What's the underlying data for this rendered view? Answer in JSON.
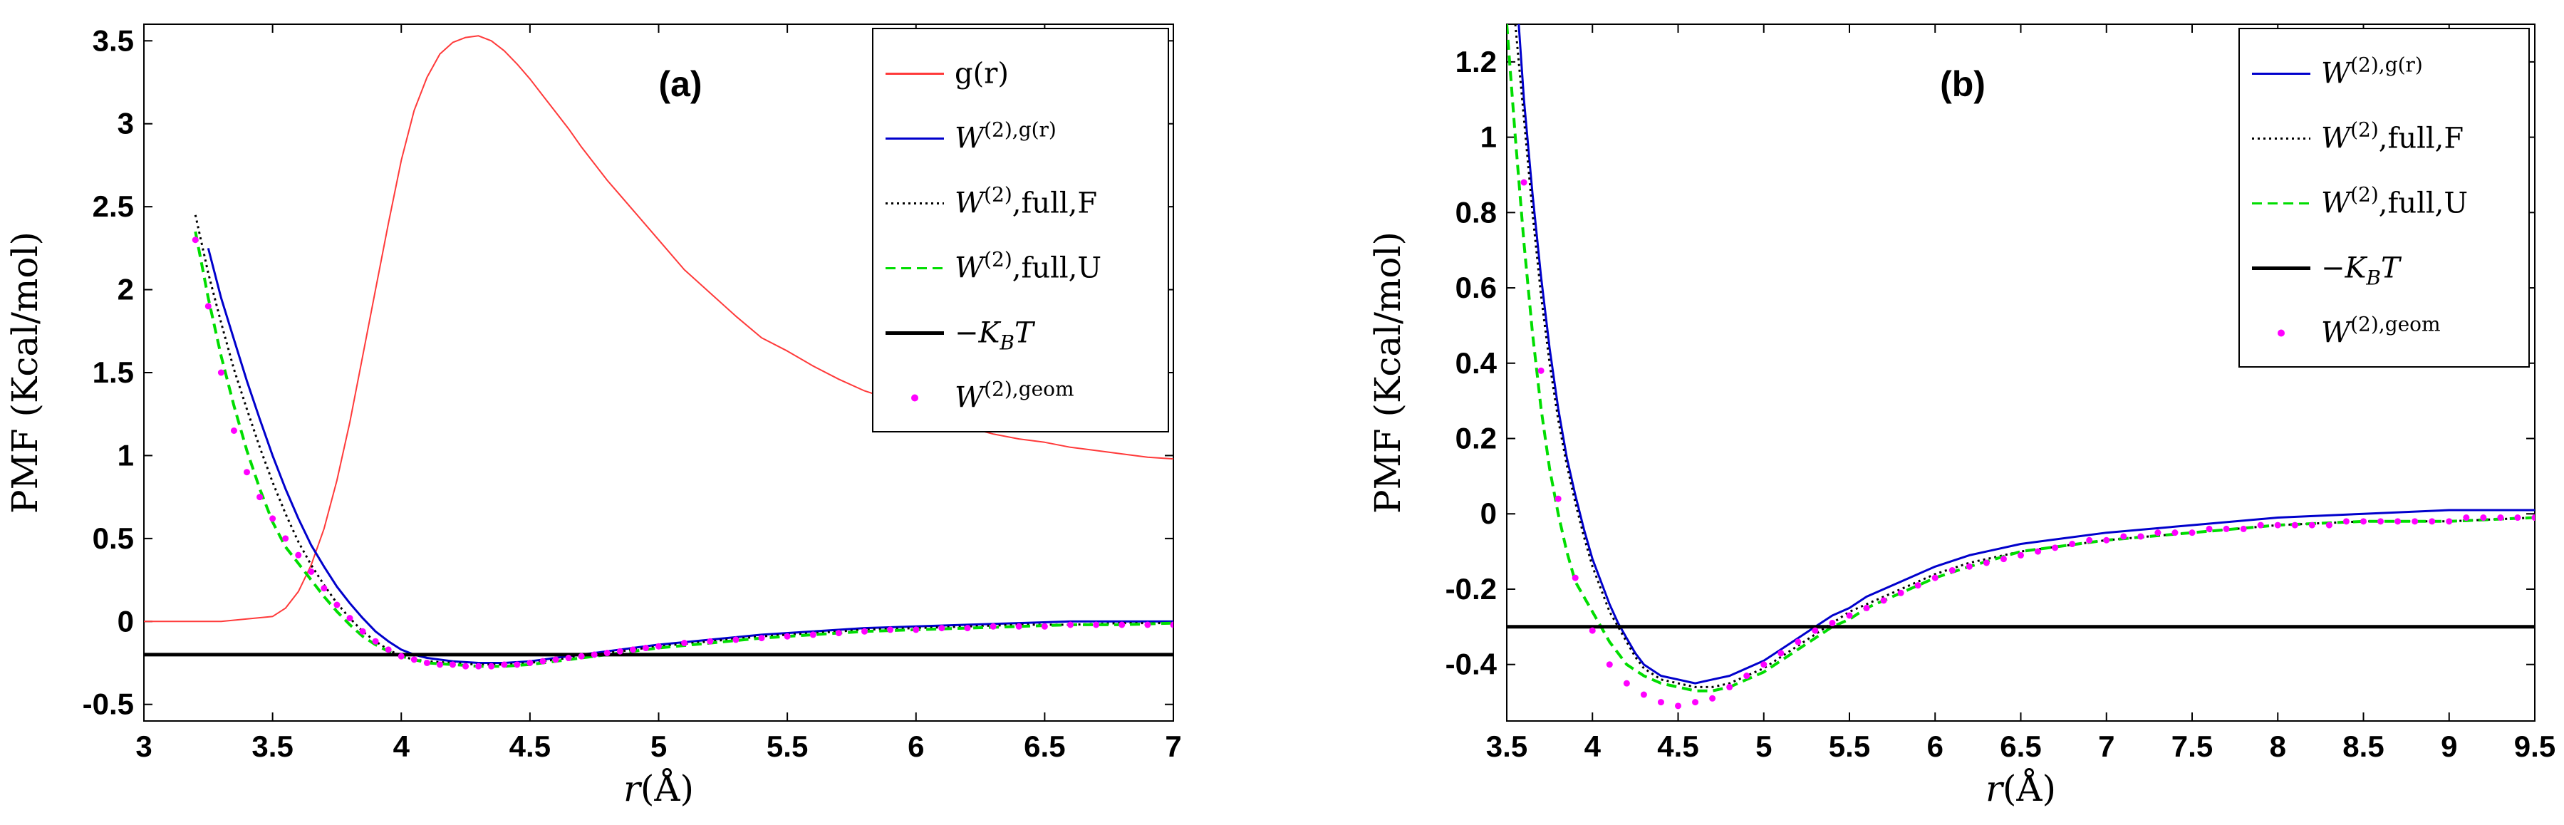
{
  "chart_data": [
    {
      "type": "line",
      "panel_label": "(a)",
      "xlabel": "r(Å)",
      "ylabel": "PMF (Kcal/mol)",
      "xlim": [
        3,
        7
      ],
      "ylim": [
        -0.6,
        3.6
      ],
      "xticks": [
        "3",
        "3.5",
        "4",
        "4.5",
        "5",
        "5.5",
        "6",
        "6.5",
        "7"
      ],
      "yticks": [
        "-0.5",
        "0",
        "0.5",
        "1",
        "1.5",
        "2",
        "2.5",
        "3",
        "3.5"
      ],
      "legend_position": "top-right",
      "legend": [
        "g(r)",
        "W(2),g(r)",
        "W(2),full,F",
        "W(2),full,U",
        "−KBT",
        "W(2),geom"
      ],
      "series": [
        {
          "name": "g(r)",
          "color": "#ff3a3a",
          "style": "solid",
          "x": [
            3.0,
            3.3,
            3.5,
            3.55,
            3.6,
            3.65,
            3.7,
            3.75,
            3.8,
            3.85,
            3.9,
            3.95,
            4.0,
            4.05,
            4.1,
            4.15,
            4.2,
            4.25,
            4.3,
            4.35,
            4.4,
            4.45,
            4.5,
            4.55,
            4.6,
            4.65,
            4.7,
            4.75,
            4.8,
            4.85,
            4.9,
            5.0,
            5.1,
            5.2,
            5.3,
            5.4,
            5.5,
            5.6,
            5.7,
            5.8,
            5.9,
            6.0,
            6.1,
            6.2,
            6.3,
            6.4,
            6.5,
            6.6,
            6.7,
            6.8,
            6.9,
            7.0
          ],
          "y": [
            0.0,
            0.0,
            0.03,
            0.08,
            0.18,
            0.34,
            0.56,
            0.85,
            1.2,
            1.6,
            2.0,
            2.4,
            2.78,
            3.08,
            3.28,
            3.42,
            3.49,
            3.52,
            3.53,
            3.5,
            3.44,
            3.36,
            3.27,
            3.17,
            3.07,
            2.97,
            2.86,
            2.76,
            2.66,
            2.57,
            2.48,
            2.3,
            2.12,
            1.98,
            1.84,
            1.71,
            1.63,
            1.54,
            1.46,
            1.39,
            1.34,
            1.27,
            1.22,
            1.17,
            1.13,
            1.1,
            1.08,
            1.05,
            1.03,
            1.01,
            0.99,
            0.98
          ]
        },
        {
          "name": "W(2),g(r)",
          "color": "#0000cc",
          "style": "solid",
          "x": [
            3.25,
            3.3,
            3.35,
            3.4,
            3.45,
            3.5,
            3.55,
            3.6,
            3.65,
            3.7,
            3.75,
            3.8,
            3.85,
            3.9,
            3.95,
            4.0,
            4.05,
            4.1,
            4.2,
            4.3,
            4.4,
            4.5,
            4.6,
            4.7,
            4.8,
            4.9,
            5.0,
            5.2,
            5.4,
            5.6,
            5.8,
            6.0,
            6.2,
            6.4,
            6.6,
            6.8,
            7.0
          ],
          "y": [
            2.25,
            1.95,
            1.7,
            1.45,
            1.22,
            1.0,
            0.8,
            0.62,
            0.46,
            0.33,
            0.21,
            0.11,
            0.02,
            -0.06,
            -0.12,
            -0.17,
            -0.2,
            -0.22,
            -0.24,
            -0.25,
            -0.25,
            -0.24,
            -0.22,
            -0.2,
            -0.18,
            -0.16,
            -0.14,
            -0.11,
            -0.08,
            -0.06,
            -0.04,
            -0.03,
            -0.02,
            -0.01,
            0.0,
            0.0,
            0.0
          ]
        },
        {
          "name": "W(2),full,F",
          "color": "#000000",
          "style": "dotted",
          "x": [
            3.2,
            3.25,
            3.3,
            3.35,
            3.4,
            3.45,
            3.5,
            3.55,
            3.6,
            3.65,
            3.7,
            3.75,
            3.8,
            3.85,
            3.9,
            3.95,
            4.0,
            4.05,
            4.1,
            4.2,
            4.3,
            4.4,
            4.5,
            4.6,
            4.7,
            4.8,
            4.9,
            5.0,
            5.2,
            5.4,
            5.6,
            5.8,
            6.0,
            6.2,
            6.4,
            6.6,
            6.8,
            7.0
          ],
          "y": [
            2.45,
            2.1,
            1.8,
            1.52,
            1.28,
            1.05,
            0.84,
            0.65,
            0.48,
            0.34,
            0.22,
            0.11,
            0.02,
            -0.06,
            -0.12,
            -0.17,
            -0.21,
            -0.23,
            -0.24,
            -0.25,
            -0.26,
            -0.26,
            -0.25,
            -0.23,
            -0.21,
            -0.19,
            -0.17,
            -0.15,
            -0.12,
            -0.09,
            -0.07,
            -0.05,
            -0.04,
            -0.03,
            -0.02,
            -0.02,
            -0.01,
            -0.01
          ]
        },
        {
          "name": "W(2),full,U",
          "color": "#00dd00",
          "style": "dashed",
          "x": [
            3.2,
            3.25,
            3.3,
            3.35,
            3.4,
            3.45,
            3.5,
            3.55,
            3.6,
            3.65,
            3.7,
            3.75,
            3.8,
            3.85,
            3.9,
            3.95,
            4.0,
            4.05,
            4.1,
            4.2,
            4.3,
            4.4,
            4.5,
            4.6,
            4.7,
            4.8,
            4.9,
            5.0,
            5.2,
            5.4,
            5.6,
            5.8,
            6.0,
            6.2,
            6.4,
            6.6,
            6.8,
            7.0
          ],
          "y": [
            2.35,
            1.95,
            1.6,
            1.3,
            1.03,
            0.8,
            0.6,
            0.45,
            0.35,
            0.25,
            0.15,
            0.06,
            -0.02,
            -0.09,
            -0.14,
            -0.18,
            -0.21,
            -0.23,
            -0.25,
            -0.26,
            -0.27,
            -0.27,
            -0.26,
            -0.24,
            -0.22,
            -0.2,
            -0.18,
            -0.16,
            -0.13,
            -0.1,
            -0.08,
            -0.06,
            -0.05,
            -0.04,
            -0.03,
            -0.02,
            -0.02,
            -0.01
          ]
        },
        {
          "name": "−KBT",
          "color": "#000000",
          "style": "thick",
          "x": [
            3.0,
            7.0
          ],
          "y": [
            -0.2,
            -0.2
          ]
        },
        {
          "name": "W(2),geom",
          "color": "#ff00ff",
          "style": "points",
          "x": [
            3.2,
            3.25,
            3.3,
            3.35,
            3.4,
            3.45,
            3.5,
            3.55,
            3.6,
            3.65,
            3.7,
            3.75,
            3.8,
            3.85,
            3.9,
            3.95,
            4.0,
            4.05,
            4.1,
            4.15,
            4.2,
            4.25,
            4.3,
            4.35,
            4.4,
            4.45,
            4.5,
            4.55,
            4.6,
            4.65,
            4.7,
            4.75,
            4.8,
            4.85,
            4.9,
            4.95,
            5.0,
            5.1,
            5.2,
            5.3,
            5.4,
            5.5,
            5.6,
            5.7,
            5.8,
            5.9,
            6.0,
            6.1,
            6.2,
            6.3,
            6.4,
            6.5,
            6.6,
            6.7,
            6.8,
            6.9,
            7.0
          ],
          "y": [
            2.3,
            1.9,
            1.5,
            1.15,
            0.9,
            0.75,
            0.62,
            0.5,
            0.4,
            0.3,
            0.2,
            0.1,
            0.02,
            -0.06,
            -0.12,
            -0.17,
            -0.21,
            -0.23,
            -0.25,
            -0.26,
            -0.26,
            -0.27,
            -0.27,
            -0.27,
            -0.26,
            -0.26,
            -0.25,
            -0.24,
            -0.23,
            -0.22,
            -0.21,
            -0.2,
            -0.19,
            -0.18,
            -0.17,
            -0.16,
            -0.15,
            -0.13,
            -0.12,
            -0.11,
            -0.1,
            -0.09,
            -0.08,
            -0.07,
            -0.06,
            -0.05,
            -0.05,
            -0.04,
            -0.04,
            -0.03,
            -0.03,
            -0.03,
            -0.02,
            -0.02,
            -0.02,
            -0.02,
            -0.02
          ]
        }
      ]
    },
    {
      "type": "line",
      "panel_label": "(b)",
      "xlabel": "r(Å)",
      "ylabel": "PMF (Kcal/mol)",
      "xlim": [
        3.5,
        9.5
      ],
      "ylim": [
        -0.55,
        1.3
      ],
      "xticks": [
        "3.5",
        "4",
        "4.5",
        "5",
        "5.5",
        "6",
        "6.5",
        "7",
        "7.5",
        "8",
        "8.5",
        "9",
        "9.5"
      ],
      "yticks": [
        "-0.4",
        "-0.2",
        "0",
        "0.2",
        "0.4",
        "0.6",
        "0.8",
        "1",
        "1.2"
      ],
      "legend_position": "top-right",
      "legend": [
        "W(2),g(r)",
        "W(2),full,F",
        "W(2),full,U",
        "−KBT",
        "W(2),geom"
      ],
      "series": [
        {
          "name": "W(2),g(r)",
          "color": "#0000cc",
          "style": "solid",
          "x": [
            3.57,
            3.6,
            3.65,
            3.7,
            3.75,
            3.8,
            3.85,
            3.9,
            3.95,
            4.0,
            4.05,
            4.1,
            4.15,
            4.2,
            4.25,
            4.3,
            4.4,
            4.5,
            4.6,
            4.7,
            4.8,
            4.9,
            5.0,
            5.1,
            5.2,
            5.3,
            5.4,
            5.5,
            5.6,
            5.8,
            6.0,
            6.2,
            6.5,
            7.0,
            7.5,
            8.0,
            8.5,
            9.0,
            9.5
          ],
          "y": [
            1.3,
            1.1,
            0.85,
            0.63,
            0.44,
            0.28,
            0.15,
            0.05,
            -0.04,
            -0.12,
            -0.18,
            -0.24,
            -0.29,
            -0.33,
            -0.37,
            -0.4,
            -0.43,
            -0.44,
            -0.45,
            -0.44,
            -0.43,
            -0.41,
            -0.39,
            -0.36,
            -0.33,
            -0.3,
            -0.27,
            -0.25,
            -0.22,
            -0.18,
            -0.14,
            -0.11,
            -0.08,
            -0.05,
            -0.03,
            -0.01,
            0.0,
            0.01,
            0.01
          ]
        },
        {
          "name": "W(2),full,F",
          "color": "#000000",
          "style": "dotted",
          "x": [
            3.55,
            3.6,
            3.65,
            3.7,
            3.75,
            3.8,
            3.85,
            3.9,
            3.95,
            4.0,
            4.05,
            4.1,
            4.15,
            4.2,
            4.25,
            4.3,
            4.4,
            4.5,
            4.6,
            4.7,
            4.8,
            4.9,
            5.0,
            5.1,
            5.2,
            5.3,
            5.4,
            5.5,
            5.6,
            5.8,
            6.0,
            6.2,
            6.5,
            7.0,
            7.5,
            8.0,
            8.5,
            9.0,
            9.5
          ],
          "y": [
            1.3,
            1.05,
            0.8,
            0.58,
            0.4,
            0.25,
            0.13,
            0.03,
            -0.06,
            -0.14,
            -0.2,
            -0.26,
            -0.3,
            -0.34,
            -0.38,
            -0.41,
            -0.44,
            -0.45,
            -0.46,
            -0.46,
            -0.45,
            -0.43,
            -0.41,
            -0.38,
            -0.35,
            -0.32,
            -0.29,
            -0.26,
            -0.24,
            -0.2,
            -0.16,
            -0.13,
            -0.1,
            -0.07,
            -0.05,
            -0.03,
            -0.02,
            -0.02,
            -0.01
          ]
        },
        {
          "name": "W(2),full,U",
          "color": "#00dd00",
          "style": "dashed",
          "x": [
            3.5,
            3.55,
            3.6,
            3.65,
            3.7,
            3.75,
            3.8,
            3.85,
            3.9,
            3.95,
            4.0,
            4.05,
            4.1,
            4.15,
            4.2,
            4.3,
            4.4,
            4.5,
            4.6,
            4.7,
            4.8,
            4.9,
            5.0,
            5.1,
            5.2,
            5.3,
            5.4,
            5.5,
            5.6,
            5.8,
            6.0,
            6.2,
            6.5,
            7.0,
            7.5,
            8.0,
            8.5,
            9.0,
            9.5
          ],
          "y": [
            1.3,
            1.0,
            0.72,
            0.48,
            0.28,
            0.12,
            0.0,
            -0.1,
            -0.18,
            -0.22,
            -0.26,
            -0.3,
            -0.34,
            -0.37,
            -0.4,
            -0.43,
            -0.45,
            -0.46,
            -0.47,
            -0.47,
            -0.46,
            -0.44,
            -0.42,
            -0.39,
            -0.36,
            -0.33,
            -0.3,
            -0.28,
            -0.25,
            -0.21,
            -0.17,
            -0.14,
            -0.1,
            -0.07,
            -0.05,
            -0.03,
            -0.02,
            -0.02,
            -0.01
          ]
        },
        {
          "name": "−KBT",
          "color": "#000000",
          "style": "thick",
          "x": [
            3.5,
            9.5
          ],
          "y": [
            -0.3,
            -0.3
          ]
        },
        {
          "name": "W(2),geom",
          "color": "#ff00ff",
          "style": "points",
          "x": [
            3.6,
            3.7,
            3.8,
            3.9,
            4.0,
            4.1,
            4.2,
            4.3,
            4.4,
            4.5,
            4.6,
            4.7,
            4.8,
            4.9,
            5.0,
            5.1,
            5.2,
            5.3,
            5.4,
            5.5,
            5.6,
            5.7,
            5.8,
            5.9,
            6.0,
            6.1,
            6.2,
            6.3,
            6.4,
            6.5,
            6.6,
            6.7,
            6.8,
            6.9,
            7.0,
            7.1,
            7.2,
            7.3,
            7.4,
            7.5,
            7.6,
            7.7,
            7.8,
            7.9,
            8.0,
            8.1,
            8.2,
            8.3,
            8.4,
            8.5,
            8.6,
            8.7,
            8.8,
            8.9,
            9.0,
            9.1,
            9.2,
            9.3,
            9.4,
            9.5
          ],
          "y": [
            0.88,
            0.38,
            0.04,
            -0.17,
            -0.31,
            -0.4,
            -0.45,
            -0.48,
            -0.5,
            -0.51,
            -0.5,
            -0.49,
            -0.46,
            -0.43,
            -0.4,
            -0.37,
            -0.34,
            -0.31,
            -0.29,
            -0.27,
            -0.25,
            -0.23,
            -0.21,
            -0.19,
            -0.17,
            -0.15,
            -0.14,
            -0.13,
            -0.12,
            -0.11,
            -0.1,
            -0.09,
            -0.08,
            -0.07,
            -0.07,
            -0.06,
            -0.06,
            -0.05,
            -0.05,
            -0.05,
            -0.04,
            -0.04,
            -0.04,
            -0.03,
            -0.03,
            -0.03,
            -0.03,
            -0.03,
            -0.02,
            -0.02,
            -0.02,
            -0.02,
            -0.02,
            -0.02,
            -0.02,
            -0.01,
            -0.01,
            -0.01,
            -0.01,
            -0.01
          ]
        }
      ]
    }
  ]
}
